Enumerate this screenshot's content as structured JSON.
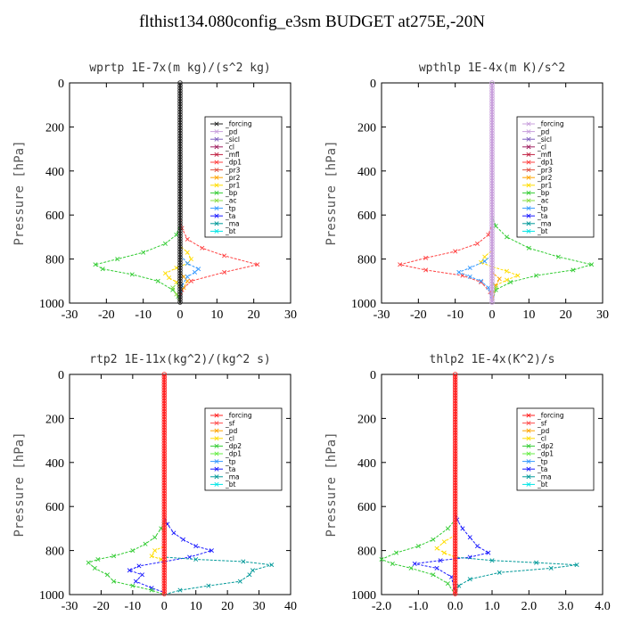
{
  "page_title": "flthist134.080config_e3sm  BUDGET at275E,-20N",
  "chart_data": [
    {
      "type": "line",
      "title": "wprtp  1E-7x(m kg)/(s^2 kg)",
      "ylabel": "Pressure [hPa]",
      "xlim": [
        -30,
        30
      ],
      "xticks": [
        "-30",
        "-20",
        "-10",
        "0",
        "10",
        "20",
        "30"
      ],
      "ylim": [
        1000,
        0
      ],
      "yticks": [
        "0",
        "200",
        "400",
        "600",
        "800",
        "1000"
      ],
      "legend_position": "top-right",
      "legend": [
        "_forcing",
        "_pd",
        "_sicl",
        "_cl",
        "_mfl",
        "_dp1",
        "_pr3",
        "_pr2",
        "_pr1",
        "_bp",
        "_ac",
        "_tp",
        "_ta",
        "_ma",
        "_bt"
      ],
      "colors": {
        "_forcing": "#222222",
        "_pd": "#c9a0dc",
        "_sicl": "#8060c0",
        "_cl": "#a02060",
        "_mfl": "#c02040",
        "_dp1": "#ff4040",
        "_pr3": "#e05040",
        "_pr2": "#ffa500",
        "_pr1": "#ffdd00",
        "_bp": "#33cc33",
        "_ac": "#88dd44",
        "_tp": "#3399ff",
        "_ta": "#1a1aff",
        "_ma": "#009999",
        "_bt": "#00e6e6"
      },
      "series": [
        {
          "name": "_dp1",
          "values": [
            [
              0,
              0
            ],
            [
              0,
              600
            ],
            [
              0.5,
              660
            ],
            [
              2,
              710
            ],
            [
              6,
              750
            ],
            [
              12,
              785
            ],
            [
              21,
              825
            ],
            [
              12,
              860
            ],
            [
              3,
              900
            ],
            [
              0.5,
              940
            ],
            [
              0,
              1000
            ]
          ]
        },
        {
          "name": "_bp",
          "values": [
            [
              0,
              0
            ],
            [
              0,
              640
            ],
            [
              -1,
              690
            ],
            [
              -4,
              730
            ],
            [
              -10,
              770
            ],
            [
              -17,
              800
            ],
            [
              -23,
              825
            ],
            [
              -21,
              845
            ],
            [
              -13,
              870
            ],
            [
              -6,
              900
            ],
            [
              -2,
              940
            ],
            [
              -0.5,
              970
            ],
            [
              0,
              1000
            ]
          ]
        },
        {
          "name": "_pr1",
          "values": [
            [
              0,
              0
            ],
            [
              0,
              740
            ],
            [
              2,
              770
            ],
            [
              3,
              800
            ],
            [
              2,
              820
            ],
            [
              -1,
              840
            ],
            [
              -4,
              865
            ],
            [
              -3,
              885
            ],
            [
              -1,
              905
            ],
            [
              0,
              930
            ],
            [
              0,
              1000
            ]
          ]
        },
        {
          "name": "_pr2",
          "values": [
            [
              0,
              0
            ],
            [
              0,
              860
            ],
            [
              1,
              880
            ],
            [
              2,
              900
            ],
            [
              1,
              930
            ],
            [
              0,
              960
            ],
            [
              0,
              1000
            ]
          ]
        },
        {
          "name": "_tp",
          "values": [
            [
              0,
              0
            ],
            [
              0,
              780
            ],
            [
              2,
              820
            ],
            [
              5,
              845
            ],
            [
              4,
              860
            ],
            [
              2,
              880
            ],
            [
              0.5,
              920
            ],
            [
              0,
              1000
            ]
          ]
        },
        {
          "name": "_ac",
          "values": [
            [
              0,
              0
            ],
            [
              0,
              900
            ],
            [
              -2,
              930
            ],
            [
              -1,
              960
            ],
            [
              0,
              1000
            ]
          ]
        },
        {
          "name": "_forcing",
          "values": [
            [
              0,
              0
            ],
            [
              0,
              1000
            ]
          ]
        }
      ]
    },
    {
      "type": "line",
      "title": "wpthlp  1E-4x(m K)/s^2",
      "ylabel": "Pressure [hPa]",
      "xlim": [
        -30,
        30
      ],
      "xticks": [
        "-30",
        "-20",
        "-10",
        "0",
        "10",
        "20",
        "30"
      ],
      "ylim": [
        1000,
        0
      ],
      "yticks": [
        "0",
        "200",
        "400",
        "600",
        "800",
        "1000"
      ],
      "legend_position": "top-right",
      "legend": [
        "_forcing",
        "_pd",
        "_sicl",
        "_cl",
        "_mfl",
        "_dp1",
        "_pr3",
        "_pr2",
        "_pr1",
        "_bp",
        "_ac",
        "_tp",
        "_ta",
        "_ma",
        "_bt"
      ],
      "colors": {
        "_forcing": "#c9a0dc",
        "_pd": "#c9a0dc",
        "_sicl": "#8060c0",
        "_cl": "#a02060",
        "_mfl": "#c02040",
        "_dp1": "#ff4040",
        "_pr3": "#e05040",
        "_pr2": "#ffa500",
        "_pr1": "#ffdd00",
        "_bp": "#33cc33",
        "_ac": "#88dd44",
        "_tp": "#3399ff",
        "_ta": "#1a1aff",
        "_ma": "#009999",
        "_bt": "#00e6e6"
      },
      "series": [
        {
          "name": "_bp",
          "values": [
            [
              0,
              0
            ],
            [
              0,
              600
            ],
            [
              1,
              650
            ],
            [
              4,
              700
            ],
            [
              10,
              750
            ],
            [
              18,
              790
            ],
            [
              27,
              825
            ],
            [
              22,
              850
            ],
            [
              12,
              875
            ],
            [
              5,
              905
            ],
            [
              1,
              940
            ],
            [
              0,
              1000
            ]
          ]
        },
        {
          "name": "_dp1",
          "values": [
            [
              0,
              0
            ],
            [
              0,
              640
            ],
            [
              -1,
              690
            ],
            [
              -4,
              730
            ],
            [
              -10,
              765
            ],
            [
              -18,
              795
            ],
            [
              -25,
              825
            ],
            [
              -18,
              850
            ],
            [
              -8,
              875
            ],
            [
              -3,
              905
            ],
            [
              -0.5,
              950
            ],
            [
              0,
              1000
            ]
          ]
        },
        {
          "name": "_pr1",
          "values": [
            [
              0,
              0
            ],
            [
              0,
              760
            ],
            [
              -2,
              790
            ],
            [
              -3,
              815
            ],
            [
              0,
              835
            ],
            [
              4,
              855
            ],
            [
              7,
              875
            ],
            [
              4,
              895
            ],
            [
              1,
              920
            ],
            [
              0,
              1000
            ]
          ]
        },
        {
          "name": "_pr2",
          "values": [
            [
              0,
              0
            ],
            [
              0,
              860
            ],
            [
              2,
              890
            ],
            [
              1,
              920
            ],
            [
              0,
              1000
            ]
          ]
        },
        {
          "name": "_tp",
          "values": [
            [
              0,
              0
            ],
            [
              0,
              780
            ],
            [
              -2,
              810
            ],
            [
              -6,
              840
            ],
            [
              -9,
              860
            ],
            [
              -6,
              880
            ],
            [
              -3,
              900
            ],
            [
              -1,
              930
            ],
            [
              0,
              1000
            ]
          ]
        },
        {
          "name": "_ac",
          "values": [
            [
              0,
              0
            ],
            [
              0,
              900
            ],
            [
              1,
              930
            ],
            [
              0,
              960
            ],
            [
              0,
              1000
            ]
          ]
        },
        {
          "name": "_forcing",
          "values": [
            [
              0,
              0
            ],
            [
              0,
              1000
            ]
          ]
        }
      ]
    },
    {
      "type": "line",
      "title": "rtp2  1E-11x(kg^2)/(kg^2 s)",
      "ylabel": "Pressure [hPa]",
      "xlim": [
        -30,
        40
      ],
      "xticks": [
        "-30",
        "-20",
        "-10",
        "0",
        "10",
        "20",
        "30",
        "40"
      ],
      "ylim": [
        1000,
        0
      ],
      "yticks": [
        "0",
        "200",
        "400",
        "600",
        "800",
        "1000"
      ],
      "legend_position": "top-right",
      "legend": [
        "_forcing",
        "_sf",
        "_pd",
        "_cl",
        "_dp2",
        "_dp1",
        "_tp",
        "_ta",
        "_ma",
        "_bt"
      ],
      "colors": {
        "_forcing": "#ff2020",
        "_sf": "#ff4d4d",
        "_pd": "#ffa500",
        "_cl": "#ffdd00",
        "_dp2": "#33cc33",
        "_dp1": "#66ee44",
        "_tp": "#3399ff",
        "_ta": "#1a1aff",
        "_ma": "#009999",
        "_bt": "#00e6e6"
      },
      "series": [
        {
          "name": "_ta",
          "values": [
            [
              0,
              0
            ],
            [
              0,
              640
            ],
            [
              1,
              680
            ],
            [
              3,
              720
            ],
            [
              6,
              750
            ],
            [
              10,
              780
            ],
            [
              15,
              800
            ],
            [
              8,
              830
            ],
            [
              0,
              850
            ],
            [
              -8,
              870
            ],
            [
              -11,
              890
            ],
            [
              -7,
              910
            ],
            [
              -9,
              940
            ],
            [
              -4,
              970
            ],
            [
              0,
              990
            ],
            [
              0,
              1000
            ]
          ]
        },
        {
          "name": "_ma",
          "values": [
            [
              0,
              0
            ],
            [
              0,
              830
            ],
            [
              10,
              840
            ],
            [
              25,
              850
            ],
            [
              34,
              865
            ],
            [
              28,
              890
            ],
            [
              27,
              910
            ],
            [
              24,
              940
            ],
            [
              14,
              960
            ],
            [
              5,
              980
            ],
            [
              0,
              1000
            ]
          ]
        },
        {
          "name": "_dp2",
          "values": [
            [
              0,
              0
            ],
            [
              0,
              660
            ],
            [
              -1,
              700
            ],
            [
              -3,
              740
            ],
            [
              -6,
              770
            ],
            [
              -10,
              800
            ],
            [
              -16,
              825
            ],
            [
              -21,
              840
            ],
            [
              -24,
              855
            ],
            [
              -22,
              880
            ],
            [
              -18,
              910
            ],
            [
              -16,
              940
            ],
            [
              -10,
              960
            ],
            [
              -4,
              980
            ],
            [
              0,
              1000
            ]
          ]
        },
        {
          "name": "_cl",
          "values": [
            [
              0,
              0
            ],
            [
              0,
              780
            ],
            [
              -3,
              800
            ],
            [
              -4,
              825
            ],
            [
              -1,
              840
            ],
            [
              0,
              850
            ],
            [
              0,
              1000
            ]
          ]
        },
        {
          "name": "_forcing",
          "values": [
            [
              0,
              0
            ],
            [
              0,
              1000
            ]
          ]
        }
      ]
    },
    {
      "type": "line",
      "title": "thlp2  1E-4x(K^2)/s",
      "ylabel": "Pressure [hPa]",
      "xlim": [
        -2.0,
        4.0
      ],
      "xticks": [
        "-2.0",
        "-1.0",
        "0.0",
        "1.0",
        "2.0",
        "3.0",
        "4.0"
      ],
      "ylim": [
        1000,
        0
      ],
      "yticks": [
        "0",
        "200",
        "400",
        "600",
        "800",
        "1000"
      ],
      "legend_position": "top-right",
      "legend": [
        "_forcing",
        "_sf",
        "_pd",
        "_cl",
        "_dp2",
        "_dp1",
        "_tp",
        "_ta",
        "_ma",
        "_bt"
      ],
      "colors": {
        "_forcing": "#ff2020",
        "_sf": "#ff4d4d",
        "_pd": "#ffa500",
        "_cl": "#ffdd00",
        "_dp2": "#33cc33",
        "_dp1": "#66ee44",
        "_tp": "#3399ff",
        "_ta": "#1a1aff",
        "_ma": "#009999",
        "_bt": "#00e6e6"
      },
      "series": [
        {
          "name": "_ta",
          "values": [
            [
              0,
              0
            ],
            [
              0,
              620
            ],
            [
              0.05,
              660
            ],
            [
              0.2,
              700
            ],
            [
              0.4,
              740
            ],
            [
              0.6,
              780
            ],
            [
              0.9,
              810
            ],
            [
              0.4,
              830
            ],
            [
              -0.4,
              845
            ],
            [
              -1.1,
              860
            ],
            [
              -0.5,
              880
            ],
            [
              -0.1,
              920
            ],
            [
              0,
              1000
            ]
          ]
        },
        {
          "name": "_ma",
          "values": [
            [
              0,
              0
            ],
            [
              0,
              830
            ],
            [
              1.0,
              845
            ],
            [
              2.2,
              855
            ],
            [
              3.3,
              865
            ],
            [
              2.6,
              880
            ],
            [
              1.2,
              900
            ],
            [
              0.4,
              930
            ],
            [
              0.1,
              960
            ],
            [
              0,
              1000
            ]
          ]
        },
        {
          "name": "_dp2",
          "values": [
            [
              0,
              0
            ],
            [
              0,
              660
            ],
            [
              -0.2,
              700
            ],
            [
              -0.6,
              750
            ],
            [
              -1.0,
              780
            ],
            [
              -1.6,
              810
            ],
            [
              -2.0,
              840
            ],
            [
              -1.7,
              860
            ],
            [
              -1.2,
              880
            ],
            [
              -0.6,
              910
            ],
            [
              -0.2,
              950
            ],
            [
              0,
              1000
            ]
          ]
        },
        {
          "name": "_cl",
          "values": [
            [
              0,
              0
            ],
            [
              0,
              730
            ],
            [
              -0.3,
              760
            ],
            [
              -0.5,
              790
            ],
            [
              -0.3,
              810
            ],
            [
              0,
              830
            ],
            [
              0,
              1000
            ]
          ]
        },
        {
          "name": "_forcing",
          "values": [
            [
              0,
              0
            ],
            [
              0,
              1000
            ]
          ]
        }
      ]
    }
  ]
}
